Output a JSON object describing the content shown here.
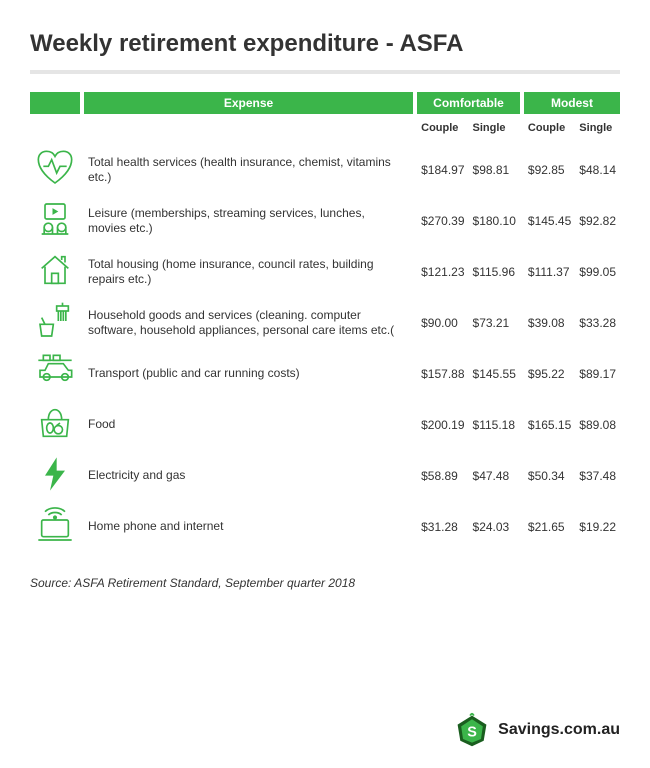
{
  "title": "Weekly retirement expenditure - ASFA",
  "colors": {
    "accent": "#3bb54a",
    "divider": "#e5e5e5",
    "text": "#333333",
    "background": "#ffffff",
    "logo_dark": "#1a5e1f"
  },
  "headers": {
    "expense": "Expense",
    "comfortable": "Comfortable",
    "modest": "Modest",
    "couple": "Couple",
    "single": "Single"
  },
  "rows": [
    {
      "icon": "health",
      "label": "Total health services (health insurance, chemist, vitamins etc.)",
      "comfortable_couple": "$184.97",
      "comfortable_single": "$98.81",
      "modest_couple": "$92.85",
      "modest_single": "$48.14"
    },
    {
      "icon": "leisure",
      "label": "Leisure (memberships, streaming services, lunches, movies etc.)",
      "comfortable_couple": "$270.39",
      "comfortable_single": "$180.10",
      "modest_couple": "$145.45",
      "modest_single": "$92.82"
    },
    {
      "icon": "housing",
      "label": "Total housing (home insurance, council rates, building repairs etc.)",
      "comfortable_couple": "$121.23",
      "comfortable_single": "$115.96",
      "modest_couple": "$111.37",
      "modest_single": "$99.05"
    },
    {
      "icon": "household",
      "label": "Household goods and services (cleaning. computer software, household appliances, personal care items etc.(",
      "comfortable_couple": "$90.00",
      "comfortable_single": "$73.21",
      "modest_couple": "$39.08",
      "modest_single": "$33.28"
    },
    {
      "icon": "transport",
      "label": "Transport (public and car running costs)",
      "comfortable_couple": "$157.88",
      "comfortable_single": "$145.55",
      "modest_couple": "$95.22",
      "modest_single": "$89.17"
    },
    {
      "icon": "food",
      "label": "Food",
      "comfortable_couple": "$200.19",
      "comfortable_single": "$115.18",
      "modest_couple": "$165.15",
      "modest_single": "$89.08"
    },
    {
      "icon": "energy",
      "label": "Electricity and gas",
      "comfortable_couple": "$58.89",
      "comfortable_single": "$47.48",
      "modest_couple": "$50.34",
      "modest_single": "$37.48"
    },
    {
      "icon": "internet",
      "label": "Home phone and internet",
      "comfortable_couple": "$31.28",
      "comfortable_single": "$24.03",
      "modest_couple": "$21.65",
      "modest_single": "$19.22"
    }
  ],
  "source": "Source: ASFA  Retirement Standard, September quarter 2018",
  "logo_text": "Savings.com.au"
}
